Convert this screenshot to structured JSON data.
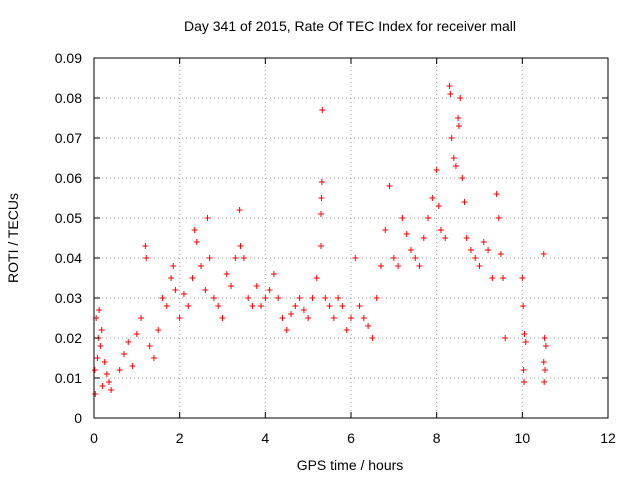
{
  "chart_data": {
    "type": "scatter",
    "title": "Day 341 of 2015, Rate Of TEC Index for receiver mall",
    "xlabel": "GPS time / hours",
    "ylabel": "ROTI / TECUs",
    "xlim": [
      0,
      12
    ],
    "ylim": [
      0,
      0.09
    ],
    "xticks": [
      0,
      2,
      4,
      6,
      8,
      10,
      12
    ],
    "xtick_labels": [
      "0",
      "2",
      "4",
      "6",
      "8",
      "10",
      "12"
    ],
    "yticks": [
      0,
      0.01,
      0.02,
      0.03,
      0.04,
      0.05,
      0.06,
      0.07,
      0.08,
      0.09
    ],
    "ytick_labels": [
      "0",
      "0.01",
      "0.02",
      "0.03",
      "0.04",
      "0.05",
      "0.06",
      "0.07",
      "0.08",
      "0.09"
    ],
    "grid": true,
    "marker": "+",
    "marker_color": "#ff0000",
    "series": [
      {
        "name": "ROTI",
        "points": [
          [
            0.02,
            0.012
          ],
          [
            0.05,
            0.025
          ],
          [
            0.08,
            0.015
          ],
          [
            0.1,
            0.02
          ],
          [
            0.12,
            0.027
          ],
          [
            0.15,
            0.018
          ],
          [
            0.18,
            0.022
          ],
          [
            0.2,
            0.008
          ],
          [
            0.03,
            0.006
          ],
          [
            0.25,
            0.014
          ],
          [
            0.3,
            0.011
          ],
          [
            0.35,
            0.009
          ],
          [
            0.4,
            0.007
          ],
          [
            0.6,
            0.012
          ],
          [
            0.7,
            0.016
          ],
          [
            0.8,
            0.019
          ],
          [
            0.9,
            0.013
          ],
          [
            1.0,
            0.021
          ],
          [
            1.1,
            0.025
          ],
          [
            1.2,
            0.043
          ],
          [
            1.22,
            0.04
          ],
          [
            1.3,
            0.018
          ],
          [
            1.4,
            0.015
          ],
          [
            1.5,
            0.022
          ],
          [
            1.6,
            0.03
          ],
          [
            1.7,
            0.028
          ],
          [
            1.8,
            0.035
          ],
          [
            1.85,
            0.038
          ],
          [
            1.9,
            0.032
          ],
          [
            2.0,
            0.025
          ],
          [
            2.1,
            0.031
          ],
          [
            2.2,
            0.028
          ],
          [
            2.3,
            0.035
          ],
          [
            2.35,
            0.047
          ],
          [
            2.4,
            0.044
          ],
          [
            2.5,
            0.038
          ],
          [
            2.6,
            0.032
          ],
          [
            2.65,
            0.05
          ],
          [
            2.7,
            0.04
          ],
          [
            2.8,
            0.03
          ],
          [
            2.9,
            0.028
          ],
          [
            3.0,
            0.025
          ],
          [
            3.1,
            0.036
          ],
          [
            3.2,
            0.033
          ],
          [
            3.3,
            0.04
          ],
          [
            3.4,
            0.052
          ],
          [
            3.42,
            0.043
          ],
          [
            3.5,
            0.04
          ],
          [
            3.6,
            0.03
          ],
          [
            3.7,
            0.028
          ],
          [
            3.8,
            0.033
          ],
          [
            3.9,
            0.028
          ],
          [
            4.0,
            0.03
          ],
          [
            4.1,
            0.032
          ],
          [
            4.2,
            0.036
          ],
          [
            4.3,
            0.03
          ],
          [
            4.4,
            0.025
          ],
          [
            4.5,
            0.022
          ],
          [
            4.6,
            0.026
          ],
          [
            4.7,
            0.028
          ],
          [
            4.8,
            0.03
          ],
          [
            4.9,
            0.027
          ],
          [
            5.0,
            0.025
          ],
          [
            5.1,
            0.03
          ],
          [
            5.2,
            0.035
          ],
          [
            5.3,
            0.043
          ],
          [
            5.33,
            0.077
          ],
          [
            5.32,
            0.059
          ],
          [
            5.31,
            0.055
          ],
          [
            5.3,
            0.051
          ],
          [
            5.4,
            0.03
          ],
          [
            5.5,
            0.028
          ],
          [
            5.6,
            0.025
          ],
          [
            5.7,
            0.03
          ],
          [
            5.8,
            0.028
          ],
          [
            5.9,
            0.022
          ],
          [
            6.0,
            0.025
          ],
          [
            6.1,
            0.04
          ],
          [
            6.2,
            0.028
          ],
          [
            6.3,
            0.025
          ],
          [
            6.4,
            0.023
          ],
          [
            6.5,
            0.02
          ],
          [
            6.6,
            0.03
          ],
          [
            6.7,
            0.038
          ],
          [
            6.8,
            0.047
          ],
          [
            6.9,
            0.058
          ],
          [
            7.0,
            0.04
          ],
          [
            7.1,
            0.038
          ],
          [
            7.2,
            0.05
          ],
          [
            7.3,
            0.046
          ],
          [
            7.4,
            0.042
          ],
          [
            7.5,
            0.04
          ],
          [
            7.6,
            0.038
          ],
          [
            7.7,
            0.045
          ],
          [
            7.8,
            0.05
          ],
          [
            7.9,
            0.055
          ],
          [
            8.0,
            0.062
          ],
          [
            8.05,
            0.053
          ],
          [
            8.1,
            0.047
          ],
          [
            8.2,
            0.045
          ],
          [
            8.3,
            0.083
          ],
          [
            8.32,
            0.081
          ],
          [
            8.35,
            0.07
          ],
          [
            8.4,
            0.065
          ],
          [
            8.45,
            0.063
          ],
          [
            8.5,
            0.075
          ],
          [
            8.52,
            0.073
          ],
          [
            8.55,
            0.08
          ],
          [
            8.6,
            0.06
          ],
          [
            8.65,
            0.054
          ],
          [
            8.7,
            0.045
          ],
          [
            8.8,
            0.042
          ],
          [
            8.9,
            0.04
          ],
          [
            9.0,
            0.038
          ],
          [
            9.1,
            0.044
          ],
          [
            9.2,
            0.042
          ],
          [
            9.3,
            0.035
          ],
          [
            9.4,
            0.056
          ],
          [
            9.45,
            0.05
          ],
          [
            9.5,
            0.041
          ],
          [
            9.55,
            0.035
          ],
          [
            9.6,
            0.02
          ],
          [
            10.0,
            0.035
          ],
          [
            10.02,
            0.028
          ],
          [
            10.05,
            0.021
          ],
          [
            10.08,
            0.019
          ],
          [
            10.03,
            0.012
          ],
          [
            10.04,
            0.009
          ],
          [
            10.5,
            0.041
          ],
          [
            10.52,
            0.02
          ],
          [
            10.55,
            0.018
          ],
          [
            10.5,
            0.014
          ],
          [
            10.53,
            0.012
          ],
          [
            10.51,
            0.009
          ]
        ]
      }
    ]
  }
}
